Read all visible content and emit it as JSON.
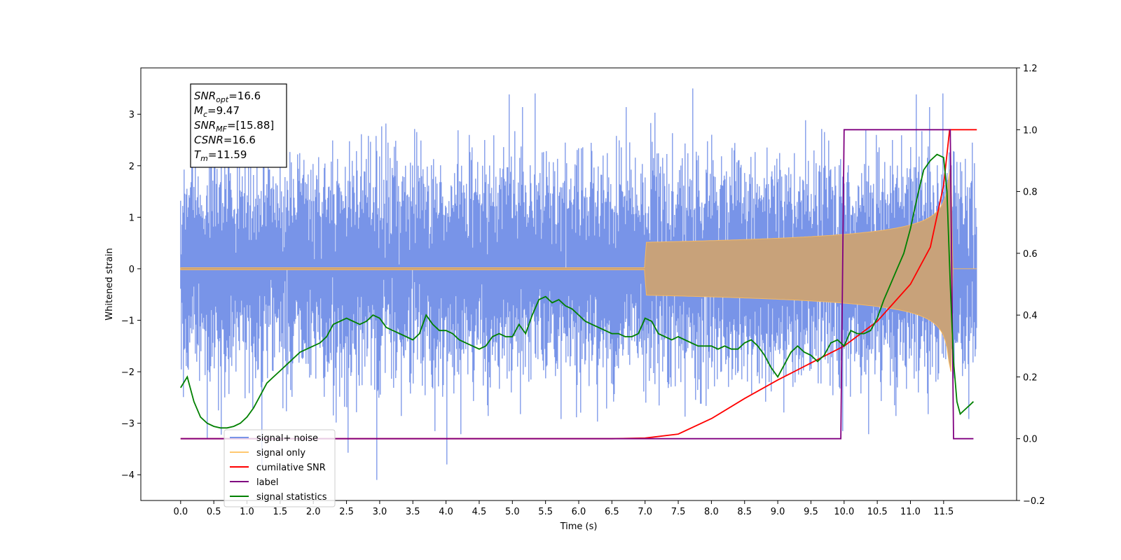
{
  "chart_data": {
    "type": "line",
    "title": "",
    "xlabel": "Time (s)",
    "ylabel": "Whitened strain",
    "xlim": [
      -0.6,
      12.6
    ],
    "ylim": [
      -4.5,
      3.9
    ],
    "y2lim": [
      -0.2,
      1.2
    ],
    "xticks": [
      "0.0",
      "0.5",
      "1.0",
      "1.5",
      "2.0",
      "2.5",
      "3.0",
      "3.5",
      "4.0",
      "4.5",
      "5.0",
      "5.5",
      "6.0",
      "6.5",
      "7.0",
      "7.5",
      "8.0",
      "8.5",
      "9.0",
      "9.5",
      "10.0",
      "10.5",
      "11.0",
      "11.5"
    ],
    "yticks": [
      "−4",
      "−3",
      "−2",
      "−1",
      "0",
      "1",
      "2",
      "3"
    ],
    "y2ticks": [
      "−0.2",
      "0.0",
      "0.2",
      "0.4",
      "0.6",
      "0.8",
      "1.0",
      "1.2"
    ],
    "grid": false,
    "legend_position": "lower-left",
    "annotation": {
      "lines": [
        {
          "sym": "SNR",
          "sub": "opt",
          "val": "=16.6"
        },
        {
          "sym": "M",
          "sub": "c",
          "val": "=9.47"
        },
        {
          "sym": "SNR",
          "sub": "MF",
          "val": "=[15.88]"
        },
        {
          "sym": "CSNR",
          "sub": "",
          "val": "=16.6"
        },
        {
          "sym": "T",
          "sub": "m",
          "val": "=11.59"
        }
      ]
    },
    "series": [
      {
        "name": "signal+ noise",
        "color": "#7894e8",
        "axis": "left",
        "note": "white noise, std ≈ 1, range ≈ [-4.1, 3.5]"
      },
      {
        "name": "signal only",
        "color": "#f5b962",
        "axis": "left",
        "chirp": {
          "start": 7.0,
          "end": 11.59,
          "peak_amplitude": 2.0
        }
      },
      {
        "name": "cumilative SNR",
        "color": "#ff0000",
        "axis": "right",
        "x": [
          0,
          6.5,
          7.0,
          7.5,
          8.0,
          8.5,
          9.0,
          9.5,
          10.0,
          10.5,
          11.0,
          11.3,
          11.5,
          11.59,
          11.6,
          12.0
        ],
        "y": [
          0,
          0,
          0.002,
          0.015,
          0.065,
          0.13,
          0.19,
          0.245,
          0.3,
          0.38,
          0.5,
          0.62,
          0.82,
          1.0,
          1.0,
          1.0
        ]
      },
      {
        "name": "label",
        "color": "#800080",
        "axis": "right",
        "x": [
          0,
          9.95,
          10.0,
          11.6,
          11.65,
          11.95
        ],
        "y": [
          0,
          0,
          1,
          1,
          0,
          0
        ]
      },
      {
        "name": "signal statistics",
        "color": "#008000",
        "axis": "right",
        "x": [
          0,
          0.1,
          0.2,
          0.3,
          0.4,
          0.5,
          0.6,
          0.7,
          0.8,
          0.9,
          1.0,
          1.1,
          1.2,
          1.3,
          1.4,
          1.5,
          1.6,
          1.7,
          1.8,
          1.9,
          2.0,
          2.1,
          2.2,
          2.3,
          2.4,
          2.5,
          2.6,
          2.7,
          2.8,
          2.9,
          3.0,
          3.1,
          3.2,
          3.3,
          3.4,
          3.5,
          3.6,
          3.7,
          3.8,
          3.9,
          4.0,
          4.1,
          4.2,
          4.3,
          4.4,
          4.5,
          4.6,
          4.7,
          4.8,
          4.9,
          5.0,
          5.1,
          5.2,
          5.3,
          5.4,
          5.5,
          5.6,
          5.7,
          5.8,
          5.9,
          6.0,
          6.1,
          6.2,
          6.3,
          6.4,
          6.5,
          6.6,
          6.7,
          6.8,
          6.9,
          7.0,
          7.1,
          7.2,
          7.3,
          7.4,
          7.5,
          7.6,
          7.7,
          7.8,
          7.9,
          8.0,
          8.1,
          8.2,
          8.3,
          8.4,
          8.5,
          8.6,
          8.7,
          8.8,
          8.9,
          9.0,
          9.1,
          9.2,
          9.3,
          9.4,
          9.5,
          9.6,
          9.7,
          9.8,
          9.9,
          10.0,
          10.1,
          10.2,
          10.3,
          10.4,
          10.5,
          10.6,
          10.7,
          10.8,
          10.9,
          11.0,
          11.1,
          11.2,
          11.3,
          11.4,
          11.5,
          11.55,
          11.6,
          11.65,
          11.7,
          11.75,
          11.8,
          11.9,
          11.95
        ],
        "y": [
          0.165,
          0.2,
          0.12,
          0.07,
          0.05,
          0.04,
          0.035,
          0.035,
          0.04,
          0.05,
          0.07,
          0.1,
          0.14,
          0.18,
          0.2,
          0.22,
          0.24,
          0.26,
          0.28,
          0.29,
          0.3,
          0.31,
          0.33,
          0.37,
          0.38,
          0.39,
          0.38,
          0.37,
          0.38,
          0.4,
          0.39,
          0.36,
          0.35,
          0.34,
          0.33,
          0.32,
          0.34,
          0.4,
          0.37,
          0.35,
          0.35,
          0.34,
          0.32,
          0.31,
          0.3,
          0.29,
          0.3,
          0.33,
          0.34,
          0.33,
          0.33,
          0.37,
          0.34,
          0.4,
          0.45,
          0.46,
          0.44,
          0.45,
          0.43,
          0.42,
          0.4,
          0.38,
          0.37,
          0.36,
          0.35,
          0.34,
          0.34,
          0.33,
          0.33,
          0.34,
          0.39,
          0.38,
          0.34,
          0.33,
          0.32,
          0.33,
          0.32,
          0.31,
          0.3,
          0.3,
          0.3,
          0.29,
          0.3,
          0.29,
          0.29,
          0.31,
          0.32,
          0.3,
          0.27,
          0.23,
          0.2,
          0.24,
          0.28,
          0.3,
          0.28,
          0.27,
          0.25,
          0.27,
          0.31,
          0.32,
          0.3,
          0.35,
          0.34,
          0.34,
          0.35,
          0.39,
          0.45,
          0.5,
          0.55,
          0.6,
          0.68,
          0.78,
          0.87,
          0.9,
          0.92,
          0.91,
          0.8,
          0.5,
          0.25,
          0.12,
          0.08,
          0.09,
          0.11,
          0.12
        ]
      }
    ]
  }
}
